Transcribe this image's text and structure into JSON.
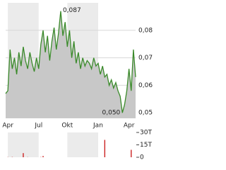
{
  "chart_data": [
    {
      "type": "area",
      "color": "#3a8a2a",
      "fill": "#c8c8c8",
      "categories": [
        null,
        "Apr",
        null,
        null,
        null,
        null,
        null,
        null,
        null,
        null,
        null,
        null,
        null,
        null,
        null,
        "Jul",
        null,
        null,
        null,
        null,
        null,
        null,
        null,
        null,
        null,
        null,
        null,
        null,
        "Okt",
        null,
        null,
        null,
        null,
        null,
        null,
        null,
        null,
        null,
        null,
        null,
        null,
        null,
        "Jan",
        null,
        null,
        null,
        null,
        null,
        null,
        null,
        null,
        null,
        null,
        null,
        null,
        null,
        "Apr",
        null,
        null,
        null
      ],
      "series": [
        {
          "values": [
            0.057,
            0.058,
            0.073,
            0.066,
            0.07,
            0.064,
            0.072,
            0.067,
            0.074,
            0.069,
            0.066,
            0.072,
            0.068,
            0.065,
            0.07,
            0.066,
            0.075,
            0.08,
            0.072,
            0.078,
            0.069,
            0.076,
            0.081,
            0.073,
            0.079,
            0.087,
            0.078,
            0.083,
            0.074,
            0.08,
            0.07,
            0.076,
            0.068,
            0.072,
            0.066,
            0.07,
            0.067,
            0.069,
            0.068,
            0.066,
            0.07,
            0.067,
            0.068,
            0.064,
            0.067,
            0.063,
            0.064,
            0.06,
            0.062,
            0.059,
            0.061,
            0.058,
            0.056,
            0.05,
            0.053,
            0.058,
            0.066,
            0.058,
            0.073,
            0.063
          ]
        }
      ],
      "ylim": [
        0.048,
        0.09
      ],
      "yticks": [
        {
          "value": 0.05,
          "label": "0,05"
        },
        {
          "value": 0.06,
          "label": "0,06"
        },
        {
          "value": 0.07,
          "label": "0,07"
        },
        {
          "value": 0.08,
          "label": "0,08"
        }
      ],
      "annotations": [
        {
          "value": 0.087,
          "label": "0,087"
        },
        {
          "value": 0.05,
          "label": "0,050"
        }
      ],
      "grid": true
    },
    {
      "type": "bar",
      "color": "#cc2222",
      "values": [
        0,
        200,
        0,
        300,
        0,
        0,
        0,
        0,
        5000,
        0,
        200,
        0,
        0,
        0,
        0,
        0,
        300,
        1500,
        0,
        0,
        0,
        0,
        0,
        0,
        0,
        0,
        0,
        0,
        0,
        0,
        0,
        0,
        0,
        0,
        0,
        0,
        0,
        0,
        0,
        0,
        0,
        0,
        0,
        0,
        0,
        21000,
        0,
        0,
        0,
        0,
        0,
        0,
        0,
        0,
        0,
        0,
        0,
        9000,
        0,
        0
      ],
      "ylim": [
        0,
        30000
      ],
      "yticks": [
        0,
        {
          "value": 15000,
          "label": "15T"
        },
        {
          "value": 30000,
          "label": "30T"
        }
      ]
    }
  ]
}
